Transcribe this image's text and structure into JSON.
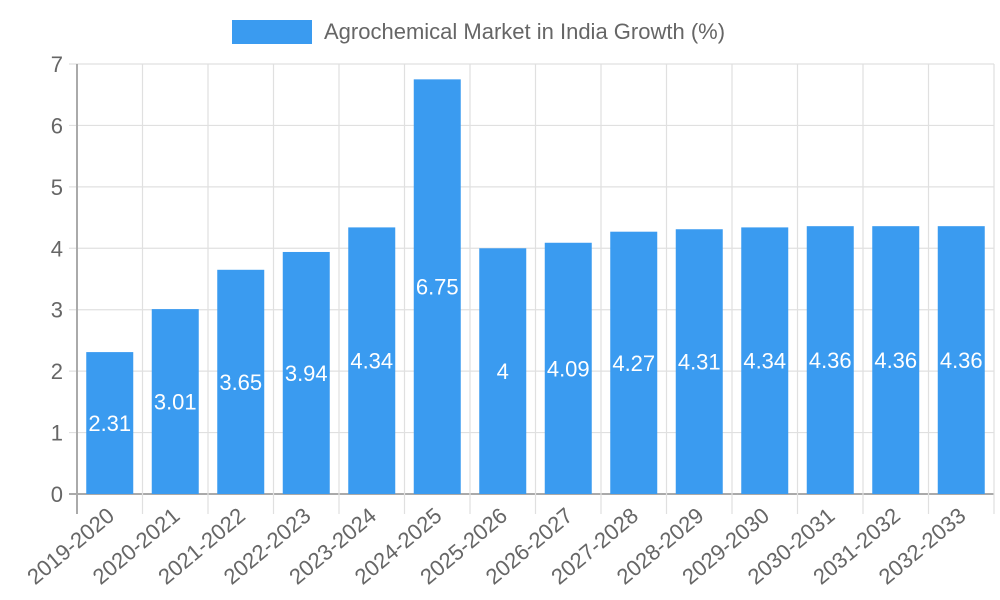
{
  "legend": {
    "label": "Agrochemical Market in India Growth (%)",
    "color": "#3a9bf0"
  },
  "chart_data": {
    "type": "bar",
    "title": "",
    "xlabel": "",
    "ylabel": "",
    "ylim": [
      0,
      7
    ],
    "yticks": [
      0,
      1,
      2,
      3,
      4,
      5,
      6,
      7
    ],
    "grid": true,
    "legend_position": "top",
    "categories": [
      "2019-2020",
      "2020-2021",
      "2021-2022",
      "2022-2023",
      "2023-2024",
      "2024-2025",
      "2025-2026",
      "2026-2027",
      "2027-2028",
      "2028-2029",
      "2029-2030",
      "2030-2031",
      "2031-2032",
      "2032-2033"
    ],
    "series": [
      {
        "name": "Agrochemical Market in India Growth (%)",
        "color": "#3a9bf0",
        "values": [
          2.31,
          3.01,
          3.65,
          3.94,
          4.34,
          6.75,
          4,
          4.09,
          4.27,
          4.31,
          4.34,
          4.36,
          4.36,
          4.36
        ],
        "labels": [
          "2.31",
          "3.01",
          "3.65",
          "3.94",
          "4.34",
          "6.75",
          "4",
          "4.09",
          "4.27",
          "4.31",
          "4.34",
          "4.36",
          "4.36",
          "4.36"
        ]
      }
    ]
  }
}
